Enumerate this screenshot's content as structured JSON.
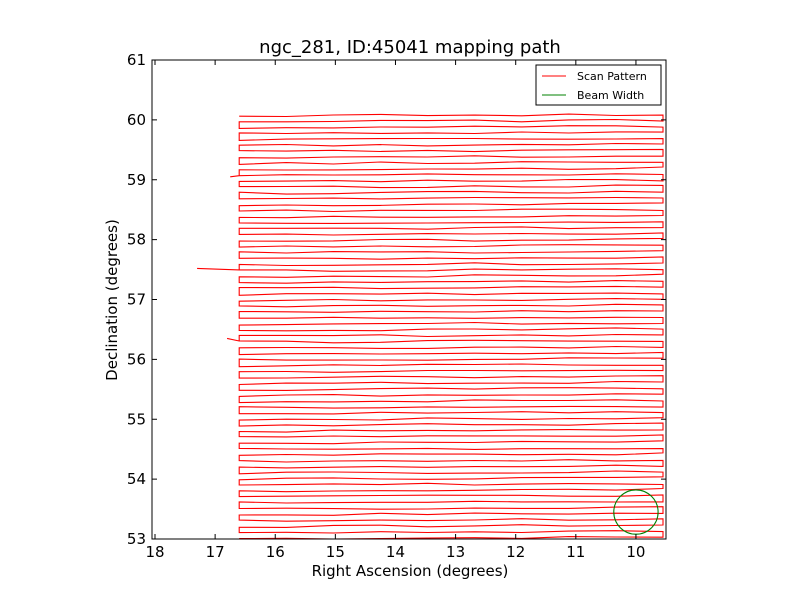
{
  "chart_data": {
    "type": "line",
    "title": "ngc_281, ID:45041 mapping path",
    "xlabel": "Right Ascension (degrees)",
    "ylabel": "Declination (degrees)",
    "xlim": [
      18.05,
      9.5
    ],
    "ylim": [
      53,
      61
    ],
    "xticks": [
      18,
      17,
      16,
      15,
      14,
      13,
      12,
      11,
      10
    ],
    "yticks": [
      53,
      54,
      55,
      56,
      57,
      58,
      59,
      60,
      61
    ],
    "grid": false,
    "legend": {
      "placement": "top-right",
      "entries": [
        {
          "label": "Scan Pattern",
          "color": "#ff0000"
        },
        {
          "label": "Beam Width",
          "color": "#008000"
        }
      ]
    },
    "series": [
      {
        "name": "Scan Pattern",
        "color": "#ff0000",
        "kind": "boustrophedon-scan",
        "ra_min": 16.6,
        "ra_max": 9.55,
        "dec_start": 53.02,
        "dec_end": 60.08,
        "row_count": 72,
        "outliers": [
          {
            "ra": 17.3,
            "dec": 57.52
          },
          {
            "ra": 16.8,
            "dec": 56.35
          },
          {
            "ra": 16.75,
            "dec": 59.05
          }
        ]
      },
      {
        "name": "Beam Width",
        "color": "#008000",
        "kind": "circle",
        "center_ra": 10.0,
        "center_dec": 53.45,
        "radius_dec": 0.37
      }
    ]
  }
}
